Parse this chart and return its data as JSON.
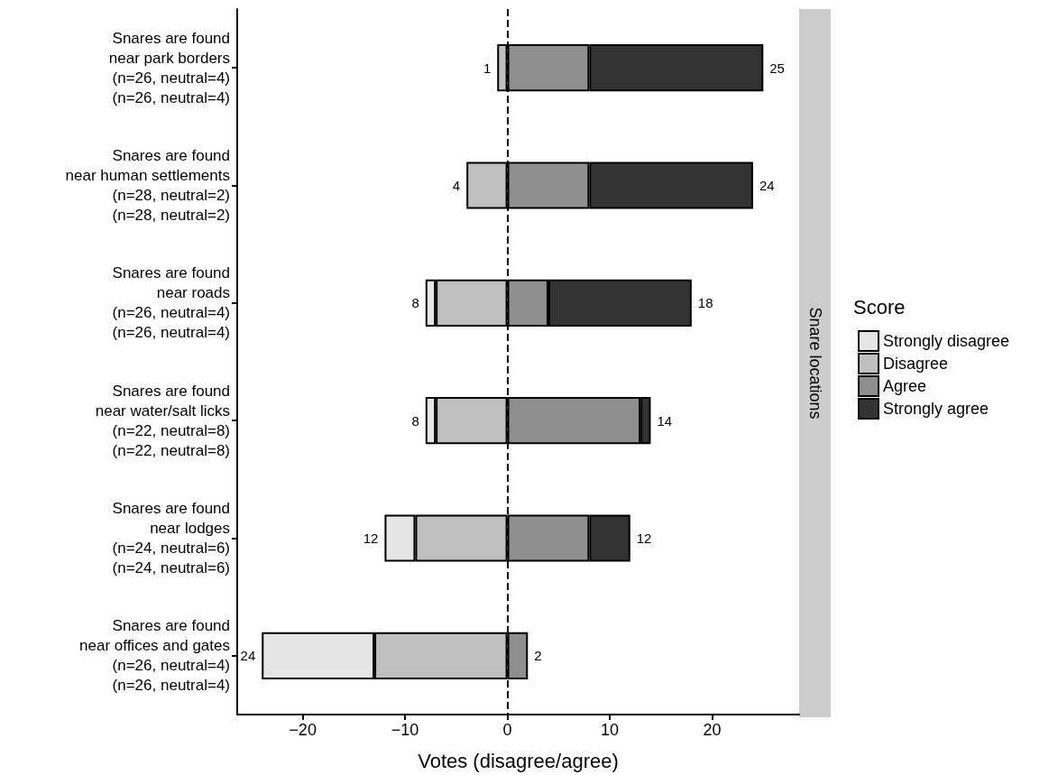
{
  "chart_data": {
    "type": "bar",
    "orientation": "horizontal",
    "stacked": true,
    "categories": [
      "Snares are found\nnear park borders\n(n=26, neutral=4)\n(n=26, neutral=4)",
      "Snares are found\nnear human settlements\n(n=28, neutral=2)\n(n=28, neutral=2)",
      "Snares are found\nnear roads\n(n=26, neutral=4)\n(n=26, neutral=4)",
      "Snares are found\nnear water/salt licks\n(n=22, neutral=8)\n(n=22, neutral=8)",
      "Snares are found\nnear lodges\n(n=24, neutral=6)\n(n=24, neutral=6)",
      "Snares are found\nnear offices and gates\n(n=26, neutral=4)\n(n=26, neutral=4)"
    ],
    "series": [
      {
        "name": "Strongly disagree",
        "color": "#e5e5e5",
        "values": [
          0,
          0,
          -1,
          -1,
          -3,
          -11
        ]
      },
      {
        "name": "Disagree",
        "color": "#bfbfbf",
        "values": [
          -1,
          -4,
          -7,
          -7,
          -9,
          -13
        ]
      },
      {
        "name": "Agree",
        "color": "#8f8f8f",
        "values": [
          8,
          8,
          4,
          13,
          8,
          2
        ]
      },
      {
        "name": "Strongly agree",
        "color": "#333333",
        "values": [
          17,
          16,
          14,
          1,
          4,
          0
        ]
      }
    ],
    "xlim": [
      -26.4,
      28.5
    ],
    "xticks": [
      {
        "value": -20,
        "label": "−20"
      },
      {
        "value": -10,
        "label": "−10"
      },
      0,
      10,
      20
    ],
    "xlabel": "Votes (disagree/agree)",
    "y2label": "Snare locations",
    "legend_title": "Score",
    "legend": "right",
    "ref_lines": [
      {
        "axis": "x",
        "value": 0,
        "line_style": "dashed",
        "color": "#000000"
      }
    ],
    "annotations": [
      {
        "text": "1",
        "x": -1,
        "y": "Snares are found\nnear park borders\n(n=26, neutral=4)\n(n=26, neutral=4)"
      },
      {
        "text": "25",
        "x": 25,
        "y": "Snares are found\nnear park borders\n(n=26, neutral=4)\n(n=26, neutral=4)"
      },
      {
        "text": "4",
        "x": -4,
        "y": "Snares are found\nnear human settlements\n(n=28, neutral=2)\n(n=28, neutral=2)"
      },
      {
        "text": "24",
        "x": 24,
        "y": "Snares are found\nnear human settlements\n(n=28, neutral=2)\n(n=28, neutral=2)"
      },
      {
        "text": "8",
        "x": -8,
        "y": "Snares are found\nnear roads\n(n=26, neutral=4)\n(n=26, neutral=4)"
      },
      {
        "text": "18",
        "x": 18,
        "y": "Snares are found\nnear roads\n(n=26, neutral=4)\n(n=26, neutral=4)"
      },
      {
        "text": "8",
        "x": -8,
        "y": "Snares are found\nnear water/salt licks\n(n=22, neutral=8)\n(n=22, neutral=8)"
      },
      {
        "text": "14",
        "x": 14,
        "y": "Snares are found\nnear water/salt licks\n(n=22, neutral=8)\n(n=22, neutral=8)"
      },
      {
        "text": "12",
        "x": -12,
        "y": "Snares are found\nnear lodges\n(n=24, neutral=6)\n(n=24, neutral=6)"
      },
      {
        "text": "12",
        "x": 12,
        "y": "Snares are found\nnear lodges\n(n=24, neutral=6)\n(n=24, neutral=6)"
      },
      {
        "text": "24",
        "x": -24,
        "y": "Snares are found\nnear offices and gates\n(n=26, neutral=4)\n(n=26, neutral=4)"
      },
      {
        "text": "2",
        "x": 2,
        "y": "Snares are found\nnear offices and gates\n(n=26, neutral=4)\n(n=26, neutral=4)"
      }
    ]
  }
}
